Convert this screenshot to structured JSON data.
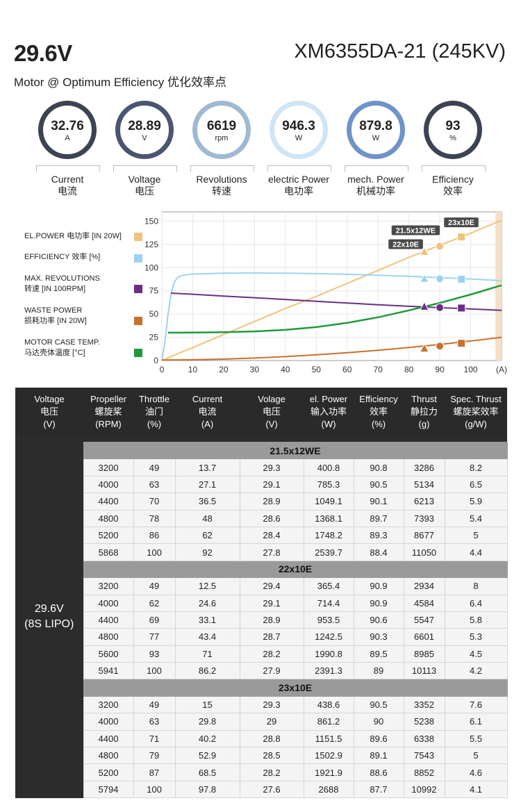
{
  "header": {
    "voltage": "29.6V",
    "model": "XM6355DA-21 (245KV)",
    "subtitle": "Motor @ Optimum Efficiency  优化效率点"
  },
  "gauges": [
    {
      "value": "32.76",
      "unit": "A",
      "label_en": "Current",
      "label_cn": "电流",
      "color": "#3c4352"
    },
    {
      "value": "28.89",
      "unit": "V",
      "label_en": "Voltage",
      "label_cn": "电压",
      "color": "#4a5570"
    },
    {
      "value": "6619",
      "unit": "rpm",
      "label_en": "Revolutions",
      "label_cn": "转速",
      "color": "#9fb9d3"
    },
    {
      "value": "946.3",
      "unit": "W",
      "label_en": "electric Power",
      "label_cn": "电功率",
      "color": "#cfe4f5"
    },
    {
      "value": "879.8",
      "unit": "W",
      "label_en": "mech. Power",
      "label_cn": "机械功率",
      "color": "#6f93c8"
    },
    {
      "value": "93",
      "unit": "%",
      "label_en": "Efficiency",
      "label_cn": "效率",
      "color": "#3c4352"
    }
  ],
  "legend": [
    {
      "line1": "EL.POWER 电功率 [IN 20W]",
      "line2": "",
      "color": "#f0c27b"
    },
    {
      "line1": "EFFICIENCY 效率 [%]",
      "line2": "",
      "color": "#9bd3ef"
    },
    {
      "line1": "MAX. REVOLUTIONS",
      "line2": "转速 [IN 100RPM]",
      "color": "#6b2d86"
    },
    {
      "line1": "WASTE POWER",
      "line2": "损耗功率 [IN 20W]",
      "color": "#c8702e"
    },
    {
      "line1": "MOTOR CASE TEMP.",
      "line2": "马达壳体温度 [°C]",
      "color": "#1f9a3a"
    }
  ],
  "chart_data": {
    "type": "line",
    "xlabel": "(A)",
    "xlim": [
      0,
      110
    ],
    "ylim": [
      0,
      160
    ],
    "x_ticks": [
      0,
      10,
      20,
      30,
      40,
      50,
      60,
      70,
      80,
      90,
      100
    ],
    "y_ticks": [
      0,
      25,
      50,
      75,
      100,
      125,
      150
    ],
    "highlight_band_x": [
      108,
      110
    ],
    "series": [
      {
        "name": "EL.POWER 电功率 [IN 20W]",
        "color": "#f0c27b",
        "width": 2,
        "x": [
          1,
          10,
          20,
          30,
          40,
          50,
          60,
          70,
          80,
          90,
          100,
          110
        ],
        "y": [
          1.5,
          14,
          28,
          42,
          56,
          69,
          83,
          97,
          111,
          124,
          137,
          151
        ]
      },
      {
        "name": "EFFICIENCY 效率 [%]",
        "color": "#9bd3ef",
        "width": 2,
        "x": [
          0,
          1,
          2,
          3,
          4,
          5,
          6,
          8,
          10,
          15,
          20,
          30,
          40,
          50,
          60,
          70,
          80,
          90,
          100,
          110
        ],
        "y": [
          0,
          20,
          50,
          72,
          84,
          89,
          91,
          92.5,
          93,
          93.5,
          94,
          94.2,
          94,
          93.5,
          92.8,
          91.8,
          90.6,
          89.2,
          87.8,
          86
        ]
      },
      {
        "name": "MAX. REVOLUTIONS 转速 [IN 100RPM]",
        "color": "#6b2d86",
        "width": 2,
        "x": [
          3,
          10,
          20,
          30,
          40,
          50,
          60,
          70,
          80,
          90,
          100,
          110
        ],
        "y": [
          72.5,
          71.3,
          69.4,
          67.6,
          65.7,
          63.8,
          61.9,
          60,
          58.4,
          56.9,
          55.5,
          54
        ]
      },
      {
        "name": "WASTE POWER 损耗功率 [IN 20W]",
        "color": "#c8702e",
        "width": 2,
        "x": [
          0,
          10,
          20,
          30,
          40,
          50,
          60,
          70,
          80,
          90,
          100,
          110
        ],
        "y": [
          0.5,
          0.8,
          1.5,
          2.7,
          4.2,
          6.1,
          8.4,
          11,
          14,
          17.3,
          21,
          25
        ]
      },
      {
        "name": "MOTOR CASE TEMP. 马达壳体温度 [°C]",
        "color": "#1f9a3a",
        "width": 2.5,
        "x": [
          2,
          10,
          20,
          30,
          40,
          50,
          60,
          70,
          80,
          90,
          100,
          110
        ],
        "y": [
          30,
          30.1,
          30.5,
          31.3,
          33,
          36,
          40.5,
          46.5,
          54,
          62,
          71,
          81
        ]
      }
    ],
    "markers": [
      {
        "x": 85,
        "y": 117,
        "shape": "triangle",
        "color": "#f0c27b",
        "label": "22x10E"
      },
      {
        "x": 90,
        "y": 123,
        "shape": "circle",
        "color": "#f0c27b",
        "label": "21.5x12WE"
      },
      {
        "x": 97,
        "y": 133,
        "shape": "square",
        "color": "#f0c27b",
        "label": "23x10E"
      },
      {
        "x": 85,
        "y": 88,
        "shape": "triangle",
        "color": "#9bd3ef",
        "label": ""
      },
      {
        "x": 90,
        "y": 88,
        "shape": "circle",
        "color": "#9bd3ef",
        "label": ""
      },
      {
        "x": 97,
        "y": 87.5,
        "shape": "square",
        "color": "#9bd3ef",
        "label": ""
      },
      {
        "x": 85,
        "y": 58,
        "shape": "triangle",
        "color": "#6b2d86",
        "label": ""
      },
      {
        "x": 90,
        "y": 57,
        "shape": "circle",
        "color": "#6b2d86",
        "label": ""
      },
      {
        "x": 97,
        "y": 56.5,
        "shape": "square",
        "color": "#6b2d86",
        "label": ""
      },
      {
        "x": 85,
        "y": 13,
        "shape": "triangle",
        "color": "#c8702e",
        "label": ""
      },
      {
        "x": 90,
        "y": 15.5,
        "shape": "circle",
        "color": "#c8702e",
        "label": ""
      },
      {
        "x": 97,
        "y": 18.5,
        "shape": "square",
        "color": "#c8702e",
        "label": ""
      }
    ]
  },
  "table": {
    "headers": [
      [
        "Voltage",
        "电压",
        "(V)"
      ],
      [
        "Propeller",
        "螺旋桨",
        "(RPM)"
      ],
      [
        "Throttle",
        "油门",
        "(%)"
      ],
      [
        "Current",
        "电流",
        "(A)"
      ],
      [
        "Volage",
        "电压",
        "(V)"
      ],
      [
        "el. Power",
        "输入功率",
        "(W)"
      ],
      [
        "Efficiency",
        "效率",
        "(%)"
      ],
      [
        "Thrust",
        "静拉力",
        "(g)"
      ],
      [
        "Spec. Thrust",
        "螺旋桨效率",
        "(g/W)"
      ]
    ],
    "voltage_line1": "29.6V",
    "voltage_line2": "(8S LIPO)",
    "groups": [
      {
        "name": "21.5x12WE",
        "rows": [
          [
            "3200",
            "49",
            "13.7",
            "29.3",
            "400.8",
            "90.8",
            "3286",
            "8.2"
          ],
          [
            "4000",
            "63",
            "27.1",
            "29.1",
            "785.3",
            "90.5",
            "5134",
            "6.5"
          ],
          [
            "4400",
            "70",
            "36.5",
            "28.9",
            "1049.1",
            "90.1",
            "6213",
            "5.9"
          ],
          [
            "4800",
            "78",
            "48",
            "28.6",
            "1368.1",
            "89.7",
            "7393",
            "5.4"
          ],
          [
            "5200",
            "86",
            "62",
            "28.4",
            "1748.2",
            "89.3",
            "8677",
            "5"
          ],
          [
            "5868",
            "100",
            "92",
            "27.8",
            "2539.7",
            "88.4",
            "11050",
            "4.4"
          ]
        ]
      },
      {
        "name": "22x10E",
        "rows": [
          [
            "3200",
            "49",
            "12.5",
            "29.4",
            "365.4",
            "90.9",
            "2934",
            "8"
          ],
          [
            "4000",
            "62",
            "24.6",
            "29.1",
            "714.4",
            "90.9",
            "4584",
            "6.4"
          ],
          [
            "4400",
            "69",
            "33.1",
            "28.9",
            "953.5",
            "90.6",
            "5547",
            "5.8"
          ],
          [
            "4800",
            "77",
            "43.4",
            "28.7",
            "1242.5",
            "90.3",
            "6601",
            "5.3"
          ],
          [
            "5600",
            "93",
            "71",
            "28.2",
            "1990.8",
            "89.5",
            "8985",
            "4.5"
          ],
          [
            "5941",
            "100",
            "86.2",
            "27.9",
            "2391.3",
            "89",
            "10113",
            "4.2"
          ]
        ]
      },
      {
        "name": "23x10E",
        "rows": [
          [
            "3200",
            "49",
            "15",
            "29.3",
            "438.6",
            "90.5",
            "3352",
            "7.6"
          ],
          [
            "4000",
            "63",
            "29.8",
            "29",
            "861.2",
            "90",
            "5238",
            "6.1"
          ],
          [
            "4400",
            "71",
            "40.2",
            "28.8",
            "1151.5",
            "89.6",
            "6338",
            "5.5"
          ],
          [
            "4800",
            "79",
            "52.9",
            "28.5",
            "1502.9",
            "89.1",
            "7543",
            "5"
          ],
          [
            "5200",
            "87",
            "68.5",
            "28.2",
            "1921.9",
            "88.6",
            "8852",
            "4.6"
          ],
          [
            "5794",
            "100",
            "97.8",
            "27.6",
            "2688",
            "87.7",
            "10992",
            "4.1"
          ]
        ]
      }
    ]
  }
}
